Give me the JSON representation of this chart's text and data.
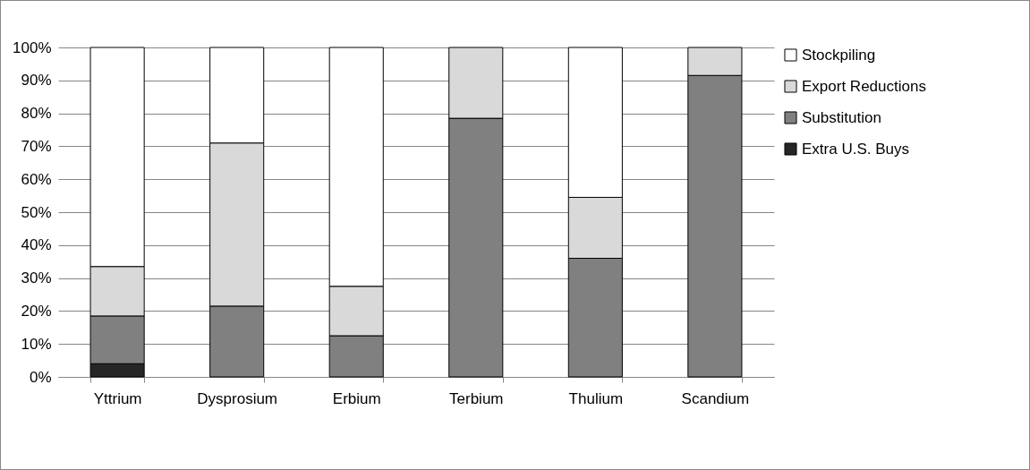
{
  "chart_data": {
    "type": "bar",
    "stacked": true,
    "categories": [
      "Yttrium",
      "Dysprosium",
      "Erbium",
      "Terbium",
      "Thulium",
      "Scandium"
    ],
    "series": [
      {
        "name": "Extra U.S. Buys",
        "color": "#262626",
        "values": [
          4,
          null,
          null,
          null,
          null,
          null
        ]
      },
      {
        "name": "Substitution",
        "color": "#808080",
        "values": [
          14.5,
          21.5,
          12.5,
          78.5,
          36,
          91.5
        ]
      },
      {
        "name": "Export Reductions",
        "color": "#d9d9d9",
        "values": [
          15,
          49.5,
          15,
          21.5,
          18.5,
          8.5
        ]
      },
      {
        "name": "Stockpiling",
        "color": "#ffffff",
        "values": [
          66.5,
          29,
          72.5,
          null,
          45.5,
          null
        ]
      }
    ],
    "ylim": [
      0,
      100
    ],
    "yticks": [
      {
        "value": 0,
        "label": "0%"
      },
      {
        "value": 10,
        "label": "10%"
      },
      {
        "value": 20,
        "label": "20%"
      },
      {
        "value": 30,
        "label": "30%"
      },
      {
        "value": 40,
        "label": "40%"
      },
      {
        "value": 50,
        "label": "50%"
      },
      {
        "value": 60,
        "label": "60%"
      },
      {
        "value": 70,
        "label": "70%"
      },
      {
        "value": 80,
        "label": "80%"
      },
      {
        "value": 90,
        "label": "90%"
      },
      {
        "value": 100,
        "label": "100%"
      }
    ],
    "grid": "y",
    "legend": "right"
  }
}
